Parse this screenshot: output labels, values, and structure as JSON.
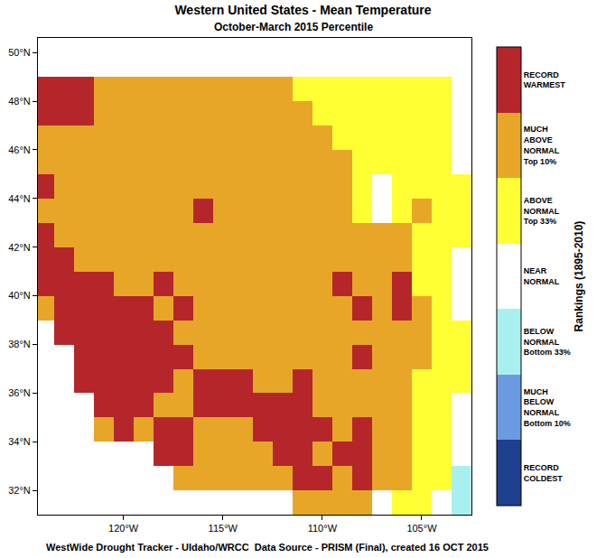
{
  "chart_data": {
    "type": "heatmap",
    "title": "Western United States - Mean Temperature",
    "subtitle": "October-March 2015 Percentile",
    "footer": "WestWide Drought Tracker - UIdaho/WRCC  Data Source - PRISM (Final), created 16 OCT 2015",
    "grid": false,
    "xlim": [
      -124.3,
      -102.5
    ],
    "ylim": [
      31,
      50.6
    ],
    "xticks": [
      {
        "value": -120,
        "label": "120°W"
      },
      {
        "value": -115,
        "label": "115°W"
      },
      {
        "value": -110,
        "label": "110°W"
      },
      {
        "value": -105,
        "label": "105°W"
      }
    ],
    "yticks": [
      {
        "value": 32,
        "label": "32°N"
      },
      {
        "value": 34,
        "label": "34°N"
      },
      {
        "value": 36,
        "label": "36°N"
      },
      {
        "value": 38,
        "label": "38°N"
      },
      {
        "value": 40,
        "label": "40°N"
      },
      {
        "value": 42,
        "label": "42°N"
      },
      {
        "value": 44,
        "label": "44°N"
      },
      {
        "value": 46,
        "label": "46°N"
      },
      {
        "value": 48,
        "label": "48°N"
      },
      {
        "value": 50,
        "label": "50°N"
      }
    ],
    "x": [
      -124,
      -123,
      -122,
      -121,
      -120,
      -119,
      -118,
      -117,
      -116,
      -115,
      -114,
      -113,
      -112,
      -111,
      -110,
      -109,
      -108,
      -107,
      -106,
      -105,
      -104,
      -103
    ],
    "y": [
      50.5,
      49.5,
      48.5,
      47.5,
      46.5,
      45.5,
      44.5,
      43.5,
      42.5,
      41.5,
      40.5,
      39.5,
      38.5,
      37.5,
      36.5,
      35.5,
      34.5,
      33.5,
      32.5,
      31.5
    ],
    "z": [
      [
        null,
        null,
        null,
        null,
        null,
        null,
        null,
        null,
        null,
        null,
        null,
        null,
        null,
        null,
        null,
        null,
        null,
        null,
        null,
        null,
        null,
        null
      ],
      [
        null,
        null,
        null,
        null,
        null,
        null,
        null,
        null,
        null,
        null,
        null,
        null,
        null,
        null,
        null,
        null,
        null,
        null,
        null,
        null,
        null,
        null
      ],
      [
        7,
        7,
        7,
        6,
        6,
        6,
        6,
        6,
        6,
        6,
        6,
        6,
        6,
        5,
        5,
        5,
        5,
        5,
        5,
        5,
        5,
        4
      ],
      [
        7,
        7,
        7,
        6,
        6,
        6,
        6,
        6,
        6,
        6,
        6,
        6,
        6,
        6,
        5,
        5,
        5,
        5,
        5,
        5,
        5,
        4
      ],
      [
        6,
        6,
        6,
        6,
        6,
        6,
        6,
        6,
        6,
        6,
        6,
        6,
        6,
        6,
        6,
        5,
        5,
        5,
        5,
        5,
        5,
        4
      ],
      [
        6,
        6,
        6,
        6,
        6,
        6,
        6,
        6,
        6,
        6,
        6,
        6,
        6,
        6,
        6,
        6,
        5,
        5,
        5,
        5,
        5,
        4
      ],
      [
        7,
        6,
        6,
        6,
        6,
        6,
        6,
        6,
        6,
        6,
        6,
        6,
        6,
        6,
        6,
        6,
        5,
        4,
        5,
        5,
        5,
        5
      ],
      [
        6,
        6,
        6,
        6,
        6,
        6,
        6,
        6,
        7,
        6,
        6,
        6,
        6,
        6,
        6,
        6,
        5,
        4,
        5,
        6,
        5,
        5
      ],
      [
        7,
        6,
        6,
        6,
        6,
        6,
        6,
        6,
        6,
        6,
        6,
        6,
        6,
        6,
        6,
        6,
        6,
        6,
        6,
        5,
        5,
        5
      ],
      [
        7,
        7,
        6,
        6,
        6,
        6,
        6,
        6,
        6,
        6,
        6,
        6,
        6,
        6,
        6,
        6,
        6,
        6,
        6,
        5,
        5,
        4
      ],
      [
        7,
        7,
        7,
        7,
        6,
        6,
        7,
        6,
        6,
        6,
        6,
        6,
        6,
        6,
        6,
        7,
        6,
        6,
        7,
        5,
        5,
        4
      ],
      [
        6,
        7,
        7,
        7,
        7,
        7,
        6,
        7,
        6,
        6,
        6,
        6,
        6,
        6,
        6,
        6,
        7,
        6,
        7,
        6,
        5,
        4
      ],
      [
        null,
        7,
        7,
        7,
        7,
        7,
        7,
        6,
        6,
        6,
        6,
        6,
        6,
        6,
        6,
        6,
        6,
        6,
        6,
        6,
        5,
        5
      ],
      [
        null,
        null,
        7,
        7,
        7,
        7,
        7,
        7,
        6,
        6,
        6,
        6,
        6,
        6,
        6,
        6,
        7,
        6,
        6,
        6,
        5,
        5
      ],
      [
        null,
        null,
        7,
        7,
        7,
        7,
        7,
        6,
        7,
        7,
        7,
        6,
        6,
        7,
        6,
        6,
        6,
        6,
        6,
        5,
        5,
        5
      ],
      [
        null,
        null,
        null,
        7,
        7,
        7,
        6,
        6,
        7,
        7,
        7,
        7,
        7,
        7,
        6,
        6,
        6,
        6,
        6,
        5,
        5,
        4
      ],
      [
        null,
        null,
        null,
        6,
        7,
        6,
        7,
        7,
        6,
        6,
        6,
        7,
        7,
        7,
        7,
        6,
        7,
        6,
        6,
        5,
        5,
        4
      ],
      [
        null,
        null,
        null,
        null,
        null,
        null,
        7,
        7,
        6,
        6,
        6,
        6,
        7,
        7,
        6,
        7,
        7,
        6,
        6,
        5,
        5,
        4
      ],
      [
        null,
        null,
        null,
        null,
        null,
        null,
        null,
        6,
        6,
        6,
        6,
        6,
        6,
        7,
        7,
        6,
        7,
        6,
        6,
        5,
        5,
        3
      ],
      [
        null,
        null,
        null,
        null,
        null,
        null,
        null,
        null,
        null,
        null,
        null,
        null,
        null,
        6,
        6,
        6,
        6,
        null,
        5,
        5,
        4,
        3
      ]
    ],
    "colors": [
      "#1f3f8f",
      "#6a9be0",
      "#a8f0f0",
      "#ffffff",
      "#ffff33",
      "#e8a628",
      "#b5262b"
    ],
    "colorbar": {
      "title": "Rankings (1895-2010)",
      "range": [
        0.5,
        7.5
      ],
      "ticks": [
        {
          "value": 1,
          "label": "RECORD\nCOLDEST"
        },
        {
          "value": 2,
          "label": "MUCH\nBELOW\nNORMAL\nBottom 10%"
        },
        {
          "value": 3,
          "label": "BELOW\nNORMAL\nBottom 33%"
        },
        {
          "value": 4,
          "label": "NEAR\nNORMAL"
        },
        {
          "value": 5,
          "label": "ABOVE\nNORMAL\nTop 33%"
        },
        {
          "value": 6,
          "label": "MUCH\nABOVE\nNORMAL\nTop 10%"
        },
        {
          "value": 7,
          "label": "RECORD\nWARMEST"
        }
      ]
    }
  }
}
